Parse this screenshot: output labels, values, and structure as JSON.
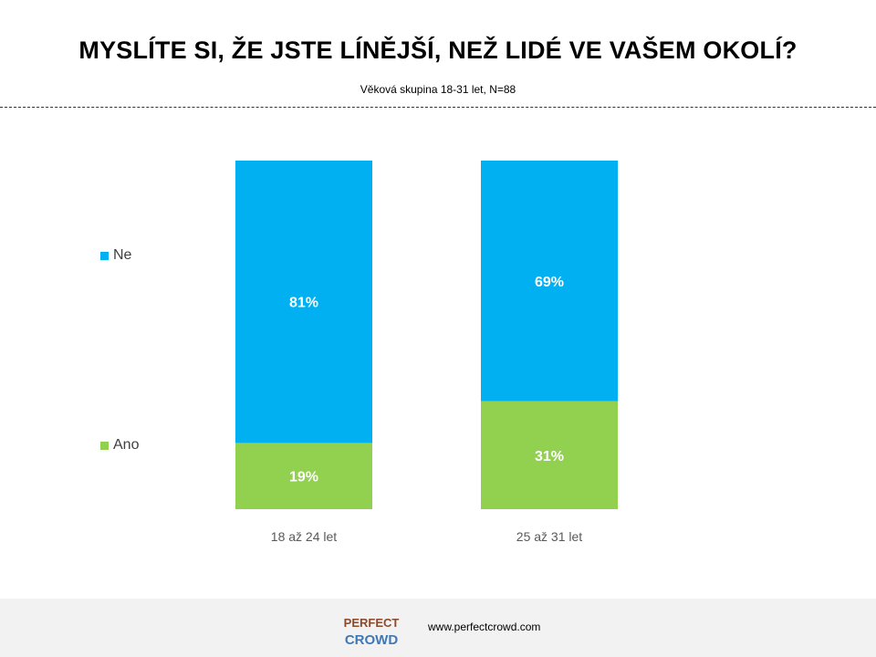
{
  "header": {
    "title": "MYSLÍTE SI, ŽE JSTE LÍNĚJŠÍ, NEŽ LIDÉ VE VAŠEM OKOLÍ?",
    "subtitle": "Věková skupina 18-31 let, N=88"
  },
  "chart_data": {
    "type": "bar",
    "stacked": true,
    "categories": [
      "18 až 24 let",
      "25 až 31 let"
    ],
    "series": [
      {
        "name": "Ano",
        "values": [
          19,
          31
        ],
        "labels": [
          "19%",
          "31%"
        ],
        "color": "#92d050"
      },
      {
        "name": "Ne",
        "values": [
          81,
          69
        ],
        "labels": [
          "81%",
          "69%"
        ],
        "color": "#00b0f0"
      }
    ],
    "ylim": [
      0,
      100
    ],
    "legend": "left",
    "grid": false
  },
  "footer": {
    "logo_text_top": "PERFECT",
    "logo_text_bottom": "CROWD",
    "url": "www.perfectcrowd.com"
  }
}
